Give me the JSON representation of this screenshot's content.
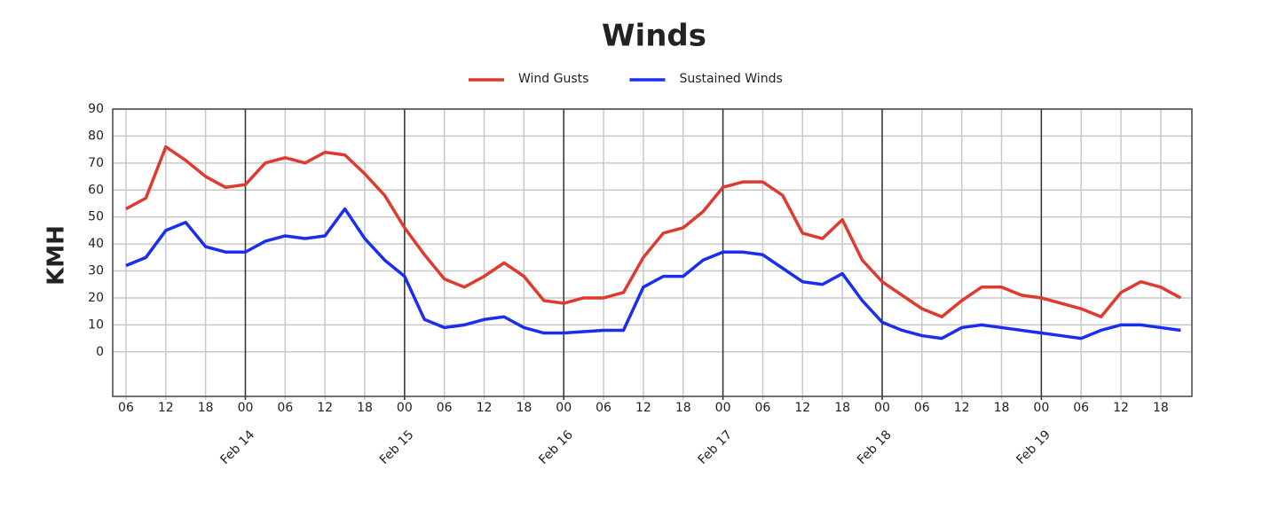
{
  "chart_data": {
    "type": "line",
    "title": "Winds",
    "y_label": "KMH",
    "x": [
      6,
      9,
      12,
      15,
      18,
      21,
      24,
      27,
      30,
      33,
      36,
      39,
      42,
      45,
      48,
      51,
      54,
      57,
      60,
      63,
      66,
      69,
      72,
      75,
      78,
      81,
      84,
      87,
      90,
      93,
      96,
      99,
      102,
      105,
      108,
      111,
      114,
      117,
      120,
      123,
      126,
      129,
      132,
      135,
      138,
      141,
      144,
      147,
      150,
      153,
      156,
      159,
      162,
      165
    ],
    "series": [
      {
        "name": "Wind Gusts",
        "color": "#e03a2f",
        "values": [
          53,
          57,
          76,
          71,
          65,
          61,
          62,
          70,
          72,
          70,
          74,
          73,
          66,
          58,
          46,
          36,
          27,
          24,
          28,
          33,
          28,
          19,
          18,
          20,
          20,
          22,
          35,
          44,
          46,
          52,
          61,
          63,
          63,
          58,
          44,
          42,
          49,
          34,
          26,
          21,
          16,
          13,
          19,
          24,
          24,
          21,
          20,
          18,
          16,
          13,
          22,
          26,
          24,
          20
        ]
      },
      {
        "name": "Sustained Winds",
        "color": "#1a2ef0",
        "values": [
          32,
          35,
          45,
          48,
          39,
          37,
          37,
          41,
          43,
          42,
          43,
          53,
          42,
          34,
          28,
          12,
          9,
          10,
          12,
          13,
          9,
          7,
          7,
          7.5,
          8,
          8,
          24,
          28,
          28,
          34,
          37,
          37,
          36,
          31,
          26,
          25,
          29,
          19,
          11,
          8,
          6,
          5,
          9,
          10,
          9,
          8,
          7,
          6,
          5,
          8,
          10,
          10,
          9,
          8
        ]
      }
    ],
    "xlim": [
      4,
      166.7
    ],
    "xticks": [
      {
        "value": 6,
        "label": "06"
      },
      12,
      18,
      {
        "value": 24,
        "label": "00"
      },
      {
        "value": 30,
        "label": "06"
      },
      {
        "value": 36,
        "label": "12"
      },
      {
        "value": 42,
        "label": "18"
      },
      {
        "value": 48,
        "label": "00"
      },
      {
        "value": 54,
        "label": "06"
      },
      {
        "value": 60,
        "label": "12"
      },
      {
        "value": 66,
        "label": "18"
      },
      {
        "value": 72,
        "label": "00"
      },
      {
        "value": 78,
        "label": "06"
      },
      {
        "value": 84,
        "label": "12"
      },
      {
        "value": 90,
        "label": "18"
      },
      {
        "value": 96,
        "label": "00"
      },
      {
        "value": 102,
        "label": "06"
      },
      {
        "value": 108,
        "label": "12"
      },
      {
        "value": 114,
        "label": "18"
      },
      {
        "value": 120,
        "label": "00"
      },
      {
        "value": 126,
        "label": "06"
      },
      {
        "value": 132,
        "label": "12"
      },
      {
        "value": 138,
        "label": "18"
      },
      {
        "value": 144,
        "label": "00"
      },
      {
        "value": 150,
        "label": "06"
      },
      {
        "value": 156,
        "label": "12"
      },
      {
        "value": 162,
        "label": "18"
      }
    ],
    "date_ticks": [
      {
        "value": 24,
        "label": "Feb 14"
      },
      {
        "value": 48,
        "label": "Feb 15"
      },
      {
        "value": 72,
        "label": "Feb 16"
      },
      {
        "value": 96,
        "label": "Feb 17"
      },
      {
        "value": 120,
        "label": "Feb 18"
      },
      {
        "value": 144,
        "label": "Feb 19"
      }
    ],
    "ylim": [
      -16.5,
      90
    ],
    "yticks": [
      0,
      10,
      20,
      30,
      40,
      50,
      60,
      70,
      80,
      90
    ],
    "grid": true
  }
}
